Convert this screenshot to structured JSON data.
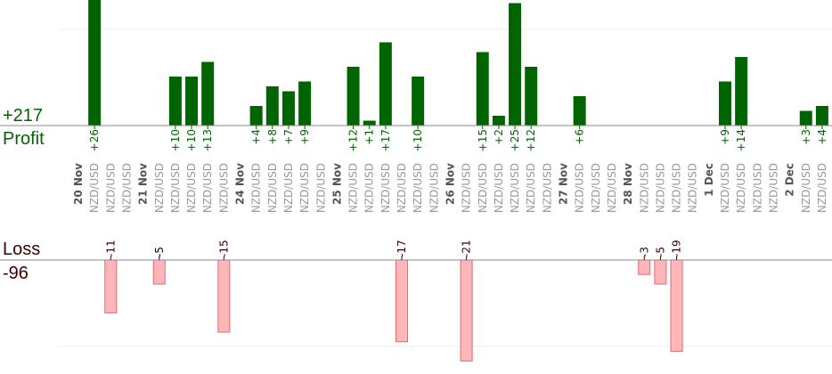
{
  "summary": {
    "profit_total": "+217",
    "profit_label": "Profit",
    "loss_label": "Loss",
    "loss_total": "-96"
  },
  "colors": {
    "profit_bar": "#006400",
    "profit_text": "#006400",
    "loss_fill": "#ffb6b9",
    "loss_stroke": "#e06a70",
    "loss_text": "#3a0000",
    "date_text": "#555555",
    "pair_text": "#9a9a9a",
    "grid": "#eeeeee",
    "axis": "#888888"
  },
  "chart_data": {
    "type": "bar",
    "grid": true,
    "pair": "NZD/USD",
    "dates": [
      {
        "label": "20 Nov",
        "slot": 0
      },
      {
        "label": "21 Nov",
        "slot": 4
      },
      {
        "label": "24 Nov",
        "slot": 10
      },
      {
        "label": "25 Nov",
        "slot": 16
      },
      {
        "label": "26 Nov",
        "slot": 23
      },
      {
        "label": "27 Nov",
        "slot": 30
      },
      {
        "label": "28 Nov",
        "slot": 34
      },
      {
        "label": "1 Dec",
        "slot": 39
      },
      {
        "label": "2 Dec",
        "slot": 44
      }
    ],
    "trades": [
      {
        "slot": 1,
        "value": 26
      },
      {
        "slot": 2,
        "value": -11
      },
      {
        "slot": 3,
        "value": null
      },
      {
        "slot": 5,
        "value": -5
      },
      {
        "slot": 6,
        "value": 10
      },
      {
        "slot": 7,
        "value": 10
      },
      {
        "slot": 8,
        "value": 13
      },
      {
        "slot": 9,
        "value": -15
      },
      {
        "slot": 11,
        "value": 4
      },
      {
        "slot": 12,
        "value": 8
      },
      {
        "slot": 13,
        "value": 7
      },
      {
        "slot": 14,
        "value": 9
      },
      {
        "slot": 15,
        "value": null
      },
      {
        "slot": 17,
        "value": 12
      },
      {
        "slot": 18,
        "value": 1
      },
      {
        "slot": 19,
        "value": 17
      },
      {
        "slot": 20,
        "value": -17
      },
      {
        "slot": 21,
        "value": 10
      },
      {
        "slot": 22,
        "value": null
      },
      {
        "slot": 24,
        "value": -21
      },
      {
        "slot": 25,
        "value": 15
      },
      {
        "slot": 26,
        "value": 2
      },
      {
        "slot": 27,
        "value": 25
      },
      {
        "slot": 28,
        "value": 12
      },
      {
        "slot": 29,
        "value": null
      },
      {
        "slot": 31,
        "value": 6
      },
      {
        "slot": 32,
        "value": null
      },
      {
        "slot": 33,
        "value": null
      },
      {
        "slot": 35,
        "value": -3
      },
      {
        "slot": 36,
        "value": -5
      },
      {
        "slot": 37,
        "value": -19
      },
      {
        "slot": 38,
        "value": null
      },
      {
        "slot": 40,
        "value": 9
      },
      {
        "slot": 41,
        "value": 14
      },
      {
        "slot": 42,
        "value": null
      },
      {
        "slot": 43,
        "value": null
      },
      {
        "slot": 45,
        "value": 3
      },
      {
        "slot": 46,
        "value": 4
      }
    ]
  }
}
